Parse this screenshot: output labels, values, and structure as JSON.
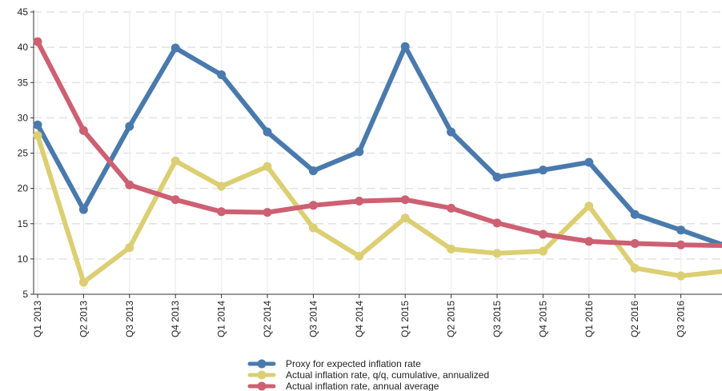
{
  "chart_data": {
    "type": "line",
    "title": "",
    "xlabel": "",
    "ylabel": "",
    "ylim": [
      5,
      45
    ],
    "yticks": [
      5,
      10,
      15,
      20,
      25,
      30,
      35,
      40,
      45
    ],
    "grid": "horizontal-dashed",
    "legend_position": "bottom-center",
    "categories": [
      "Q1 2013",
      "Q2 2013",
      "Q3 2013",
      "Q4 2013",
      "Q1 2014",
      "Q2 2014",
      "Q3 2014",
      "Q4 2014",
      "Q1 2015",
      "Q2 2015",
      "Q3 2015",
      "Q4 2015",
      "Q1 2016",
      "Q2 2016",
      "Q3 2016",
      ""
    ],
    "series": [
      {
        "name": "Proxy for expected inflation rate",
        "color": "#4a7aad",
        "values": [
          29.0,
          17.0,
          28.8,
          39.9,
          36.1,
          28.0,
          22.5,
          25.2,
          40.1,
          28.0,
          21.6,
          22.6,
          23.7,
          16.3,
          14.1,
          11.8
        ]
      },
      {
        "name": "Actual inflation rate, q/q, cumulative, annualized",
        "color": "#dccf73",
        "values": [
          27.5,
          6.7,
          11.6,
          23.9,
          20.3,
          23.1,
          14.4,
          10.4,
          15.8,
          11.4,
          10.8,
          11.1,
          17.5,
          8.7,
          7.6,
          8.3
        ]
      },
      {
        "name": "Actual inflation rate, annual average",
        "color": "#cd6072",
        "values": [
          40.8,
          28.2,
          20.5,
          18.4,
          16.7,
          16.6,
          17.6,
          18.2,
          18.4,
          17.2,
          15.1,
          13.5,
          12.5,
          12.2,
          12.0,
          11.9
        ]
      }
    ]
  }
}
